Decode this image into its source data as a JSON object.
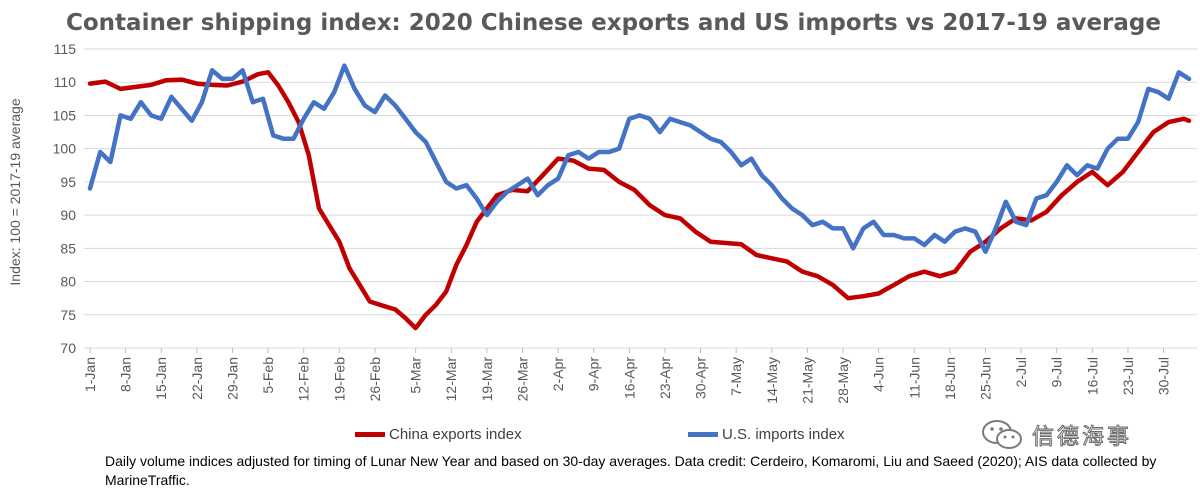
{
  "chart_data": {
    "type": "line",
    "title": "Container shipping index: 2020 Chinese exports and US imports vs 2017-19 average",
    "ylabel": "Index: 100 = 2017-19 average",
    "xlabel": "",
    "ylim": [
      70,
      115
    ],
    "yticks": [
      70,
      75,
      80,
      85,
      90,
      95,
      100,
      105,
      110,
      115
    ],
    "grid": "horizontal",
    "legend_position": "bottom",
    "x_start": "1-Jan",
    "x_end": "4-Aug",
    "x_tick_labels": [
      "1-Jan",
      "8-Jan",
      "15-Jan",
      "22-Jan",
      "29-Jan",
      "5-Feb",
      "12-Feb",
      "19-Feb",
      "26-Feb",
      "5-Mar",
      "12-Mar",
      "19-Mar",
      "26-Mar",
      "2-Apr",
      "9-Apr",
      "16-Apr",
      "23-Apr",
      "30-Apr",
      "7-May",
      "14-May",
      "21-May",
      "28-May",
      "4-Jun",
      "11-Jun",
      "18-Jun",
      "25-Jun",
      "2-Jul",
      "9-Jul",
      "16-Jul",
      "23-Jul",
      "30-Jul"
    ],
    "series": [
      {
        "name": "China exports index",
        "color": "#c00000",
        "points": [
          [
            "1-Jan",
            109.8
          ],
          [
            "4-Jan",
            110.1
          ],
          [
            "7-Jan",
            109.0
          ],
          [
            "10-Jan",
            109.3
          ],
          [
            "13-Jan",
            109.6
          ],
          [
            "16-Jan",
            110.3
          ],
          [
            "19-Jan",
            110.4
          ],
          [
            "22-Jan",
            109.8
          ],
          [
            "25-Jan",
            109.6
          ],
          [
            "28-Jan",
            109.5
          ],
          [
            "31-Jan",
            110.1
          ],
          [
            "3-Feb",
            111.2
          ],
          [
            "5-Feb",
            111.5
          ],
          [
            "7-Feb",
            109.5
          ],
          [
            "9-Feb",
            107.0
          ],
          [
            "11-Feb",
            104.0
          ],
          [
            "13-Feb",
            99.0
          ],
          [
            "15-Feb",
            91.0
          ],
          [
            "17-Feb",
            88.5
          ],
          [
            "19-Feb",
            86.0
          ],
          [
            "21-Feb",
            82.0
          ],
          [
            "23-Feb",
            79.5
          ],
          [
            "25-Feb",
            77.0
          ],
          [
            "27-Feb",
            76.5
          ],
          [
            "1-Mar",
            75.8
          ],
          [
            "3-Mar",
            74.5
          ],
          [
            "5-Mar",
            73.0
          ],
          [
            "7-Mar",
            75.0
          ],
          [
            "9-Mar",
            76.5
          ],
          [
            "11-Mar",
            78.5
          ],
          [
            "13-Mar",
            82.5
          ],
          [
            "15-Mar",
            85.5
          ],
          [
            "17-Mar",
            89.0
          ],
          [
            "19-Mar",
            91.0
          ],
          [
            "21-Mar",
            93.0
          ],
          [
            "24-Mar",
            93.8
          ],
          [
            "27-Mar",
            93.6
          ],
          [
            "30-Mar",
            96.0
          ],
          [
            "2-Apr",
            98.5
          ],
          [
            "5-Apr",
            98.2
          ],
          [
            "8-Apr",
            97.0
          ],
          [
            "11-Apr",
            96.8
          ],
          [
            "14-Apr",
            95.0
          ],
          [
            "17-Apr",
            93.8
          ],
          [
            "20-Apr",
            91.5
          ],
          [
            "23-Apr",
            90.0
          ],
          [
            "26-Apr",
            89.5
          ],
          [
            "29-Apr",
            87.5
          ],
          [
            "2-May",
            86.0
          ],
          [
            "5-May",
            85.8
          ],
          [
            "8-May",
            85.6
          ],
          [
            "11-May",
            84.0
          ],
          [
            "14-May",
            83.5
          ],
          [
            "17-May",
            83.0
          ],
          [
            "20-May",
            81.5
          ],
          [
            "23-May",
            80.8
          ],
          [
            "26-May",
            79.5
          ],
          [
            "29-May",
            77.5
          ],
          [
            "1-Jun",
            77.8
          ],
          [
            "4-Jun",
            78.2
          ],
          [
            "7-Jun",
            79.5
          ],
          [
            "10-Jun",
            80.8
          ],
          [
            "13-Jun",
            81.5
          ],
          [
            "16-Jun",
            80.8
          ],
          [
            "19-Jun",
            81.5
          ],
          [
            "22-Jun",
            84.5
          ],
          [
            "25-Jun",
            86.0
          ],
          [
            "28-Jun",
            88.0
          ],
          [
            "1-Jul",
            89.5
          ],
          [
            "4-Jul",
            89.2
          ],
          [
            "7-Jul",
            90.5
          ],
          [
            "10-Jul",
            93.0
          ],
          [
            "13-Jul",
            95.0
          ],
          [
            "16-Jul",
            96.5
          ],
          [
            "19-Jul",
            94.5
          ],
          [
            "22-Jul",
            96.5
          ],
          [
            "25-Jul",
            99.5
          ],
          [
            "28-Jul",
            102.5
          ],
          [
            "31-Jul",
            104.0
          ],
          [
            "3-Aug",
            104.5
          ],
          [
            "4-Aug",
            104.2
          ]
        ]
      },
      {
        "name": "U.S. imports index",
        "color": "#4472c4",
        "points": [
          [
            "1-Jan",
            94.0
          ],
          [
            "3-Jan",
            99.5
          ],
          [
            "5-Jan",
            98.0
          ],
          [
            "7-Jan",
            105.0
          ],
          [
            "9-Jan",
            104.5
          ],
          [
            "11-Jan",
            107.0
          ],
          [
            "13-Jan",
            105.0
          ],
          [
            "15-Jan",
            104.5
          ],
          [
            "17-Jan",
            107.8
          ],
          [
            "19-Jan",
            106.0
          ],
          [
            "21-Jan",
            104.2
          ],
          [
            "23-Jan",
            107.0
          ],
          [
            "25-Jan",
            111.8
          ],
          [
            "27-Jan",
            110.5
          ],
          [
            "29-Jan",
            110.5
          ],
          [
            "31-Jan",
            111.8
          ],
          [
            "2-Feb",
            107.0
          ],
          [
            "4-Feb",
            107.5
          ],
          [
            "6-Feb",
            102.0
          ],
          [
            "8-Feb",
            101.5
          ],
          [
            "10-Feb",
            101.5
          ],
          [
            "12-Feb",
            104.5
          ],
          [
            "14-Feb",
            107.0
          ],
          [
            "16-Feb",
            106.0
          ],
          [
            "18-Feb",
            108.5
          ],
          [
            "20-Feb",
            112.5
          ],
          [
            "22-Feb",
            109.0
          ],
          [
            "24-Feb",
            106.5
          ],
          [
            "26-Feb",
            105.5
          ],
          [
            "28-Feb",
            108.0
          ],
          [
            "1-Mar",
            106.5
          ],
          [
            "3-Mar",
            104.5
          ],
          [
            "5-Mar",
            102.5
          ],
          [
            "7-Mar",
            101.0
          ],
          [
            "9-Mar",
            98.0
          ],
          [
            "11-Mar",
            95.0
          ],
          [
            "13-Mar",
            94.0
          ],
          [
            "15-Mar",
            94.5
          ],
          [
            "17-Mar",
            92.5
          ],
          [
            "19-Mar",
            90.0
          ],
          [
            "21-Mar",
            92.0
          ],
          [
            "23-Mar",
            93.5
          ],
          [
            "25-Mar",
            94.5
          ],
          [
            "27-Mar",
            95.5
          ],
          [
            "29-Mar",
            93.0
          ],
          [
            "31-Mar",
            94.5
          ],
          [
            "2-Apr",
            95.5
          ],
          [
            "4-Apr",
            99.0
          ],
          [
            "6-Apr",
            99.5
          ],
          [
            "8-Apr",
            98.5
          ],
          [
            "10-Apr",
            99.5
          ],
          [
            "12-Apr",
            99.5
          ],
          [
            "14-Apr",
            100.0
          ],
          [
            "16-Apr",
            104.5
          ],
          [
            "18-Apr",
            105.0
          ],
          [
            "20-Apr",
            104.5
          ],
          [
            "22-Apr",
            102.5
          ],
          [
            "24-Apr",
            104.5
          ],
          [
            "26-Apr",
            104.0
          ],
          [
            "28-Apr",
            103.5
          ],
          [
            "30-Apr",
            102.5
          ],
          [
            "2-May",
            101.5
          ],
          [
            "4-May",
            101.0
          ],
          [
            "6-May",
            99.5
          ],
          [
            "8-May",
            97.5
          ],
          [
            "10-May",
            98.5
          ],
          [
            "12-May",
            96.0
          ],
          [
            "14-May",
            94.5
          ],
          [
            "16-May",
            92.5
          ],
          [
            "18-May",
            91.0
          ],
          [
            "20-May",
            90.0
          ],
          [
            "22-May",
            88.5
          ],
          [
            "24-May",
            89.0
          ],
          [
            "26-May",
            88.0
          ],
          [
            "28-May",
            88.0
          ],
          [
            "30-May",
            85.0
          ],
          [
            "1-Jun",
            88.0
          ],
          [
            "3-Jun",
            89.0
          ],
          [
            "5-Jun",
            87.0
          ],
          [
            "7-Jun",
            87.0
          ],
          [
            "9-Jun",
            86.5
          ],
          [
            "11-Jun",
            86.5
          ],
          [
            "13-Jun",
            85.5
          ],
          [
            "15-Jun",
            87.0
          ],
          [
            "17-Jun",
            86.0
          ],
          [
            "19-Jun",
            87.5
          ],
          [
            "21-Jun",
            88.0
          ],
          [
            "23-Jun",
            87.5
          ],
          [
            "25-Jun",
            84.5
          ],
          [
            "27-Jun",
            88.0
          ],
          [
            "29-Jun",
            92.0
          ],
          [
            "1-Jul",
            89.0
          ],
          [
            "3-Jul",
            88.5
          ],
          [
            "5-Jul",
            92.5
          ],
          [
            "7-Jul",
            93.0
          ],
          [
            "9-Jul",
            95.0
          ],
          [
            "11-Jul",
            97.5
          ],
          [
            "13-Jul",
            96.0
          ],
          [
            "15-Jul",
            97.5
          ],
          [
            "17-Jul",
            97.0
          ],
          [
            "19-Jul",
            100.0
          ],
          [
            "21-Jul",
            101.5
          ],
          [
            "23-Jul",
            101.5
          ],
          [
            "25-Jul",
            104.0
          ],
          [
            "27-Jul",
            109.0
          ],
          [
            "29-Jul",
            108.5
          ],
          [
            "31-Jul",
            107.5
          ],
          [
            "2-Aug",
            111.5
          ],
          [
            "4-Aug",
            110.5
          ]
        ]
      }
    ]
  },
  "legend": {
    "china_label": "China exports index",
    "us_label": "U.S. imports index"
  },
  "caption": "Daily volume indices adjusted for timing of Lunar New Year and based on 30-day averages. Data credit: Cerdeiro, Komaromi, Liu and Saeed (2020); AIS data collected by MarineTraffic.",
  "watermark": {
    "text": "信德海事",
    "icon": "wechat-icon"
  }
}
